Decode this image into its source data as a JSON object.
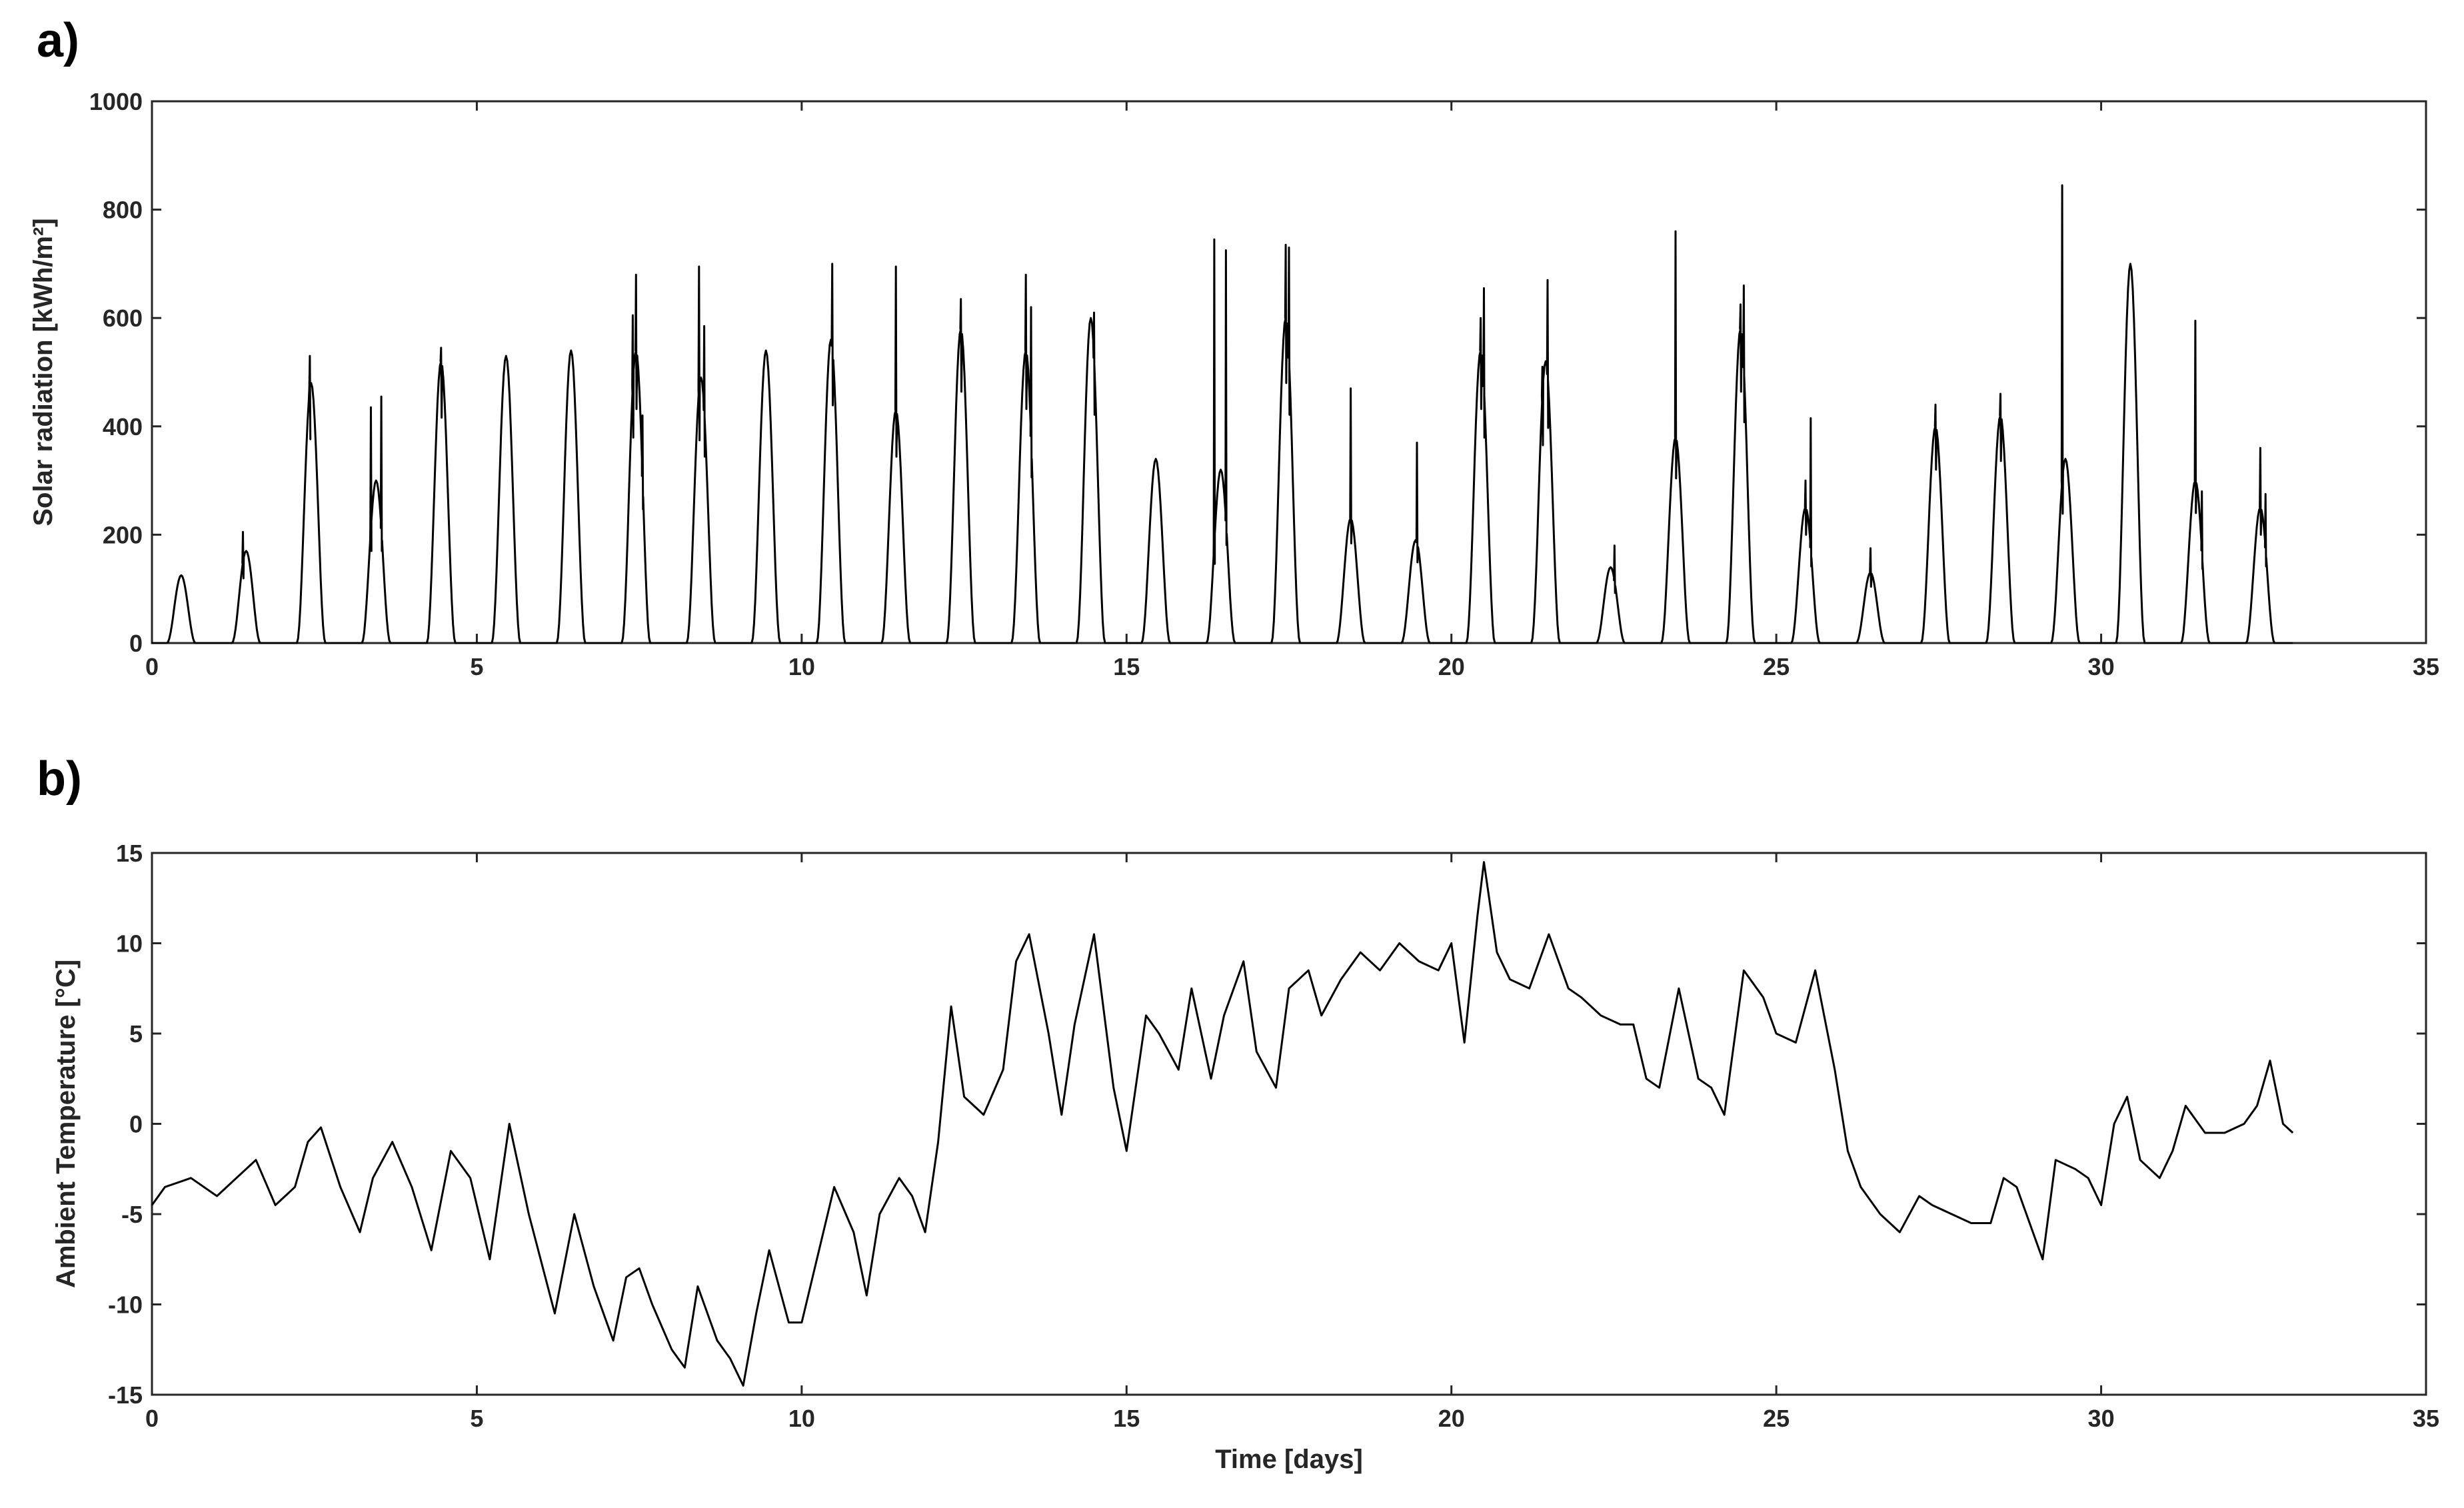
{
  "chart_data": [
    {
      "panel_label": "a)",
      "type": "line",
      "xlabel": "",
      "ylabel": "Solar radiation [kWh/m²]",
      "xlim": [
        0,
        35
      ],
      "ylim": [
        0,
        1000
      ],
      "xticks": [
        0,
        5,
        10,
        15,
        20,
        25,
        30,
        35
      ],
      "yticks": [
        0,
        200,
        400,
        600,
        800,
        1000
      ],
      "grid": false,
      "series": [
        {
          "days": [
            {
              "day": 0,
              "peak": 125,
              "spikes": []
            },
            {
              "day": 1,
              "peak": 170,
              "spikes": [
                [
                  -0.05,
                  205
                ]
              ]
            },
            {
              "day": 2,
              "peak": 480,
              "spikes": [
                [
                  -0.02,
                  530
                ]
              ]
            },
            {
              "day": 3,
              "peak": 300,
              "spikes": [
                [
                  -0.08,
                  435
                ],
                [
                  0.08,
                  455
                ]
              ]
            },
            {
              "day": 4,
              "peak": 520,
              "spikes": [
                [
                  0,
                  545
                ]
              ]
            },
            {
              "day": 5,
              "peak": 530,
              "spikes": []
            },
            {
              "day": 6,
              "peak": 540,
              "spikes": []
            },
            {
              "day": 7,
              "peak": 540,
              "spikes": [
                [
                  -0.05,
                  605
                ],
                [
                  0,
                  680
                ],
                [
                  0.1,
                  420
                ]
              ]
            },
            {
              "day": 8,
              "peak": 490,
              "spikes": [
                [
                  -0.03,
                  695
                ],
                [
                  0.05,
                  585
                ]
              ]
            },
            {
              "day": 9,
              "peak": 540,
              "spikes": []
            },
            {
              "day": 10,
              "peak": 560,
              "spikes": [
                [
                  0.02,
                  700
                ]
              ]
            },
            {
              "day": 11,
              "peak": 430,
              "spikes": [
                [
                  0,
                  695
                ]
              ]
            },
            {
              "day": 12,
              "peak": 580,
              "spikes": [
                [
                  0,
                  635
                ]
              ]
            },
            {
              "day": 13,
              "peak": 540,
              "spikes": [
                [
                  0,
                  680
                ],
                [
                  0.08,
                  620
                ]
              ]
            },
            {
              "day": 14,
              "peak": 600,
              "spikes": [
                [
                  0.05,
                  610
                ]
              ]
            },
            {
              "day": 15,
              "peak": 340,
              "spikes": []
            },
            {
              "day": 16,
              "peak": 320,
              "spikes": [
                [
                  -0.1,
                  745
                ],
                [
                  0.08,
                  725
                ]
              ]
            },
            {
              "day": 17,
              "peak": 600,
              "spikes": [
                [
                  0,
                  735
                ],
                [
                  0.05,
                  730
                ]
              ]
            },
            {
              "day": 18,
              "peak": 230,
              "spikes": [
                [
                  0,
                  470
                ]
              ]
            },
            {
              "day": 19,
              "peak": 190,
              "spikes": [
                [
                  0.02,
                  370
                ]
              ]
            },
            {
              "day": 20,
              "peak": 540,
              "spikes": [
                [
                  0,
                  600
                ],
                [
                  0.05,
                  655
                ]
              ]
            },
            {
              "day": 21,
              "peak": 520,
              "spikes": [
                [
                  -0.05,
                  510
                ],
                [
                  0.03,
                  670
                ]
              ]
            },
            {
              "day": 22,
              "peak": 140,
              "spikes": [
                [
                  0.06,
                  180
                ]
              ]
            },
            {
              "day": 23,
              "peak": 380,
              "spikes": [
                [
                  0,
                  760
                ]
              ]
            },
            {
              "day": 24,
              "peak": 580,
              "spikes": [
                [
                  0,
                  625
                ],
                [
                  0.05,
                  660
                ]
              ]
            },
            {
              "day": 25,
              "peak": 250,
              "spikes": [
                [
                  0,
                  300
                ],
                [
                  0.08,
                  415
                ]
              ]
            },
            {
              "day": 26,
              "peak": 130,
              "spikes": [
                [
                  0,
                  175
                ]
              ]
            },
            {
              "day": 27,
              "peak": 400,
              "spikes": [
                [
                  0,
                  440
                ]
              ]
            },
            {
              "day": 28,
              "peak": 420,
              "spikes": [
                [
                  0,
                  460
                ]
              ]
            },
            {
              "day": 29,
              "peak": 340,
              "spikes": [
                [
                  -0.05,
                  845
                ]
              ]
            },
            {
              "day": 30,
              "peak": 700,
              "spikes": []
            },
            {
              "day": 31,
              "peak": 300,
              "spikes": [
                [
                  0,
                  595
                ],
                [
                  0.1,
                  280
                ]
              ]
            },
            {
              "day": 32,
              "peak": 250,
              "spikes": [
                [
                  0,
                  360
                ],
                [
                  0.08,
                  275
                ]
              ]
            }
          ],
          "end_day": 32.95
        }
      ]
    },
    {
      "panel_label": "b)",
      "type": "line",
      "xlabel": "Time [days]",
      "ylabel": "Ambient Temperature [°C]",
      "xlim": [
        0,
        35
      ],
      "ylim": [
        -15,
        15
      ],
      "xticks": [
        0,
        5,
        10,
        15,
        20,
        25,
        30,
        35
      ],
      "yticks": [
        -15,
        -10,
        -5,
        0,
        5,
        10,
        15
      ],
      "grid": false,
      "series": [
        {
          "x": [
            0,
            0.2,
            0.6,
            1.0,
            1.3,
            1.6,
            1.9,
            2.2,
            2.4,
            2.6,
            2.9,
            3.2,
            3.4,
            3.7,
            4.0,
            4.3,
            4.6,
            4.9,
            5.2,
            5.5,
            5.8,
            6.2,
            6.5,
            6.8,
            7.1,
            7.3,
            7.5,
            7.7,
            8.0,
            8.2,
            8.4,
            8.7,
            8.9,
            9.1,
            9.3,
            9.5,
            9.8,
            10.0,
            10.3,
            10.5,
            10.8,
            11.0,
            11.2,
            11.5,
            11.7,
            11.9,
            12.1,
            12.3,
            12.5,
            12.8,
            13.1,
            13.3,
            13.5,
            13.8,
            14.0,
            14.2,
            14.5,
            14.8,
            15.0,
            15.3,
            15.5,
            15.8,
            16.0,
            16.3,
            16.5,
            16.8,
            17.0,
            17.3,
            17.5,
            17.8,
            18.0,
            18.3,
            18.6,
            18.9,
            19.2,
            19.5,
            19.8,
            20.0,
            20.2,
            20.4,
            20.5,
            20.7,
            20.9,
            21.2,
            21.5,
            21.8,
            22.0,
            22.3,
            22.6,
            22.8,
            23.0,
            23.2,
            23.5,
            23.8,
            24.0,
            24.2,
            24.5,
            24.8,
            25.0,
            25.3,
            25.6,
            25.9,
            26.1,
            26.3,
            26.6,
            26.9,
            27.2,
            27.4,
            27.7,
            28.0,
            28.3,
            28.5,
            28.7,
            28.9,
            29.1,
            29.3,
            29.6,
            29.8,
            30.0,
            30.2,
            30.4,
            30.6,
            30.9,
            31.1,
            31.3,
            31.6,
            31.9,
            32.2,
            32.4,
            32.6,
            32.8,
            32.95
          ],
          "y": [
            -4.5,
            -3.5,
            -3.0,
            -4.0,
            -3.0,
            -2.0,
            -4.5,
            -3.5,
            -1.0,
            -0.2,
            -3.5,
            -6.0,
            -3.0,
            -1.0,
            -3.5,
            -7.0,
            -1.5,
            -3.0,
            -7.5,
            0.0,
            -5.0,
            -10.5,
            -5.0,
            -9.0,
            -12.0,
            -8.5,
            -8.0,
            -10.0,
            -12.5,
            -13.5,
            -9.0,
            -12.0,
            -13.0,
            -14.5,
            -10.5,
            -7.0,
            -11.0,
            -11.0,
            -6.5,
            -3.5,
            -6.0,
            -9.5,
            -5.0,
            -3.0,
            -4.0,
            -6.0,
            -1.0,
            6.5,
            1.5,
            0.5,
            3.0,
            9.0,
            10.5,
            5.0,
            0.5,
            5.5,
            10.5,
            2.0,
            -1.5,
            6.0,
            5.0,
            3.0,
            7.5,
            2.5,
            6.0,
            9.0,
            4.0,
            2.0,
            7.5,
            8.5,
            6.0,
            8.0,
            9.5,
            8.5,
            10.0,
            9.0,
            8.5,
            10.0,
            4.5,
            11.5,
            14.5,
            9.5,
            8.0,
            7.5,
            10.5,
            7.5,
            7.0,
            6.0,
            5.5,
            5.5,
            2.5,
            2.0,
            7.5,
            2.5,
            2.0,
            0.5,
            8.5,
            7.0,
            5.0,
            4.5,
            8.5,
            3.0,
            -1.5,
            -3.5,
            -5.0,
            -6.0,
            -4.0,
            -4.5,
            -5.0,
            -5.5,
            -5.5,
            -3.0,
            -3.5,
            -5.5,
            -7.5,
            -2.0,
            -2.5,
            -3.0,
            -4.5,
            0.0,
            1.5,
            -2.0,
            -3.0,
            -1.5,
            1.0,
            -0.5,
            -0.5,
            0.0,
            1.0,
            3.5,
            0.0,
            -0.5
          ]
        }
      ]
    }
  ]
}
